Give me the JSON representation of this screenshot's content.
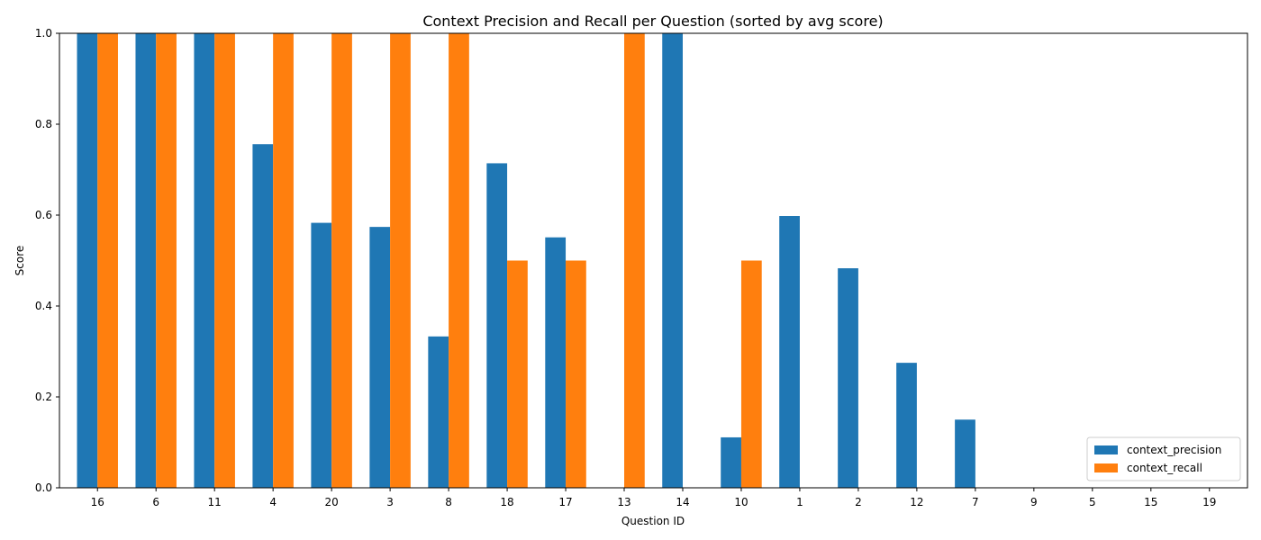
{
  "chart_data": {
    "type": "bar",
    "title": "Context Precision and Recall per Question (sorted by avg score)",
    "xlabel": "Question ID",
    "ylabel": "Score",
    "ylim": [
      0,
      1.0
    ],
    "yticks": [
      "0.0",
      "0.2",
      "0.4",
      "0.6",
      "0.8",
      "1.0"
    ],
    "categories": [
      "16",
      "6",
      "11",
      "4",
      "20",
      "3",
      "8",
      "18",
      "17",
      "13",
      "14",
      "10",
      "1",
      "2",
      "12",
      "7",
      "9",
      "5",
      "15",
      "19"
    ],
    "series": [
      {
        "name": "context_precision",
        "color": "#1f77b4",
        "values": [
          1.0,
          1.0,
          1.0,
          0.756,
          0.583,
          0.574,
          0.333,
          0.714,
          0.551,
          0.0,
          1.0,
          0.111,
          0.598,
          0.483,
          0.275,
          0.15,
          0.0,
          0.0,
          0.0,
          0.0
        ]
      },
      {
        "name": "context_recall",
        "color": "#ff7f0e",
        "values": [
          1.0,
          1.0,
          1.0,
          1.0,
          1.0,
          1.0,
          1.0,
          0.5,
          0.5,
          1.0,
          0.0,
          0.5,
          0.0,
          0.0,
          0.0,
          0.0,
          0.0,
          0.0,
          0.0,
          0.0
        ]
      }
    ],
    "legend_position": "lower-right",
    "grid": false
  }
}
